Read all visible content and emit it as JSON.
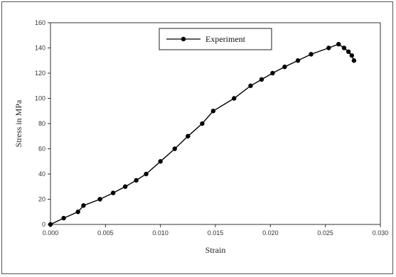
{
  "chart_data": {
    "type": "line",
    "xlabel": "Strain",
    "ylabel": "Stress in MPa",
    "xlim": [
      0,
      0.03
    ],
    "ylim": [
      0,
      160
    ],
    "x_ticks": [
      "0.000",
      "0.005",
      "0.010",
      "0.015",
      "0.020",
      "0.025",
      "0.030"
    ],
    "y_ticks": [
      "0",
      "20",
      "40",
      "60",
      "80",
      "100",
      "120",
      "140",
      "160"
    ],
    "grid": false,
    "legend_position": "top-right",
    "series": [
      {
        "name": "Experiment",
        "color": "#000000",
        "marker": "circle",
        "x": [
          0.0,
          0.0012,
          0.0025,
          0.003,
          0.0045,
          0.0057,
          0.0068,
          0.0078,
          0.0087,
          0.01,
          0.0113,
          0.0125,
          0.0138,
          0.0148,
          0.0167,
          0.0182,
          0.0192,
          0.0202,
          0.0213,
          0.0225,
          0.0237,
          0.0253,
          0.0262,
          0.0267,
          0.0271,
          0.0274,
          0.0276
        ],
        "y": [
          0,
          5,
          10,
          15,
          20,
          25,
          30,
          35,
          40,
          50,
          60,
          70,
          80,
          90,
          100,
          110,
          115,
          120,
          125,
          130,
          135,
          140,
          143,
          140,
          137,
          134,
          130
        ]
      }
    ]
  }
}
